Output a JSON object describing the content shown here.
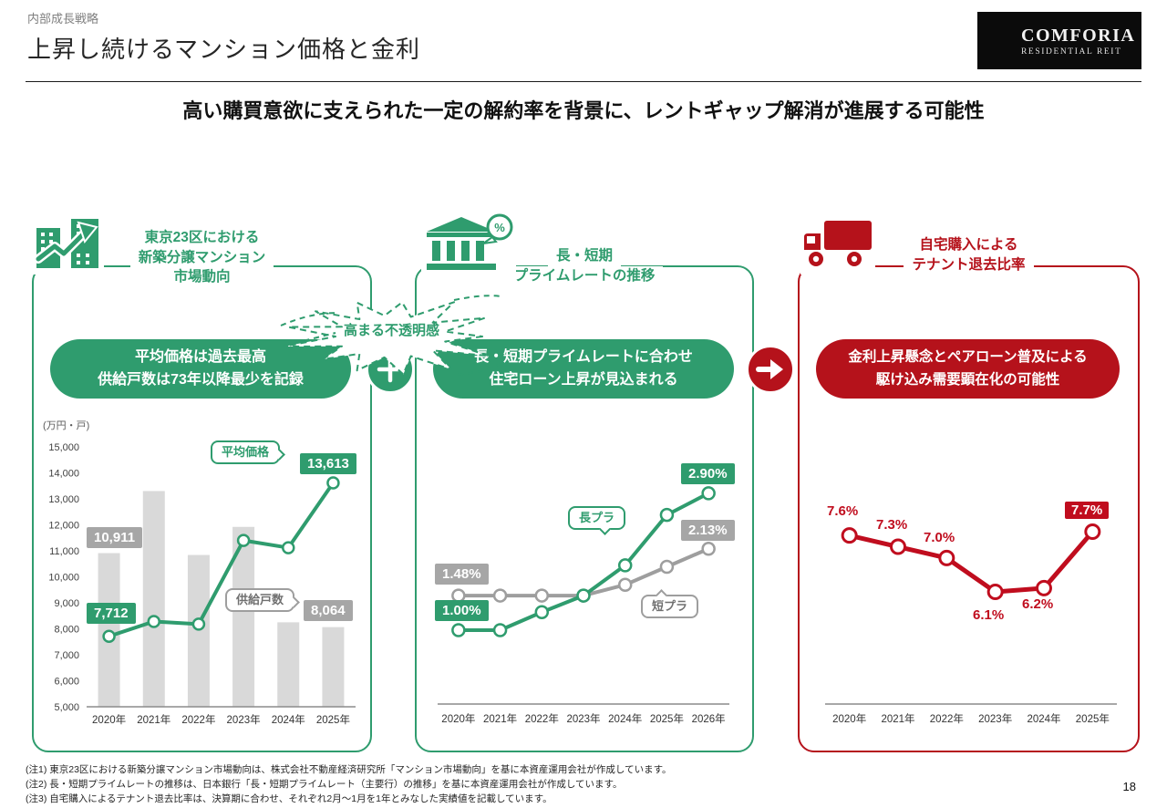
{
  "page": {
    "eyebrow": "内部成長戦略",
    "title": "上昇し続けるマンション価格と金利",
    "subtitle": "高い購買意欲に支えられた一定の解約率を背景に、レントギャップ解消が進展する可能性",
    "page_number": "18"
  },
  "logo": {
    "brand": "COMFORIA",
    "sub": "RESIDENTIAL REIT"
  },
  "colors": {
    "green": "#2f9c6e",
    "red": "#b5121b",
    "chart_red": "#c00d1e",
    "gray_bar": "#d9d9d9",
    "gray_line": "#9e9e9e",
    "gray_label": "#a6a6a6"
  },
  "panels": {
    "left": {
      "title_lines": [
        "東京23区における",
        "新築分譲マンション",
        "市場動向"
      ],
      "badge_lines": [
        "平均価格は過去最高",
        "供給戸数は73年以降最少を記録"
      ],
      "unit": "(万円・戸)",
      "labels": {
        "supply_start": "10,911",
        "price_start": "7,712",
        "price_end": "13,613",
        "supply_end": "8,064",
        "price_bubble": "平均価格",
        "supply_bubble": "供給戸数"
      }
    },
    "middle": {
      "title_lines": [
        "長・短期",
        "プライムレートの推移"
      ],
      "burst": "高まる不透明感",
      "badge_lines": [
        "長・短期プライムレートに合わせ",
        "住宅ローン上昇が見込まれる"
      ],
      "labels": {
        "short_start": "1.48%",
        "long_start": "1.00%",
        "long_end": "2.90%",
        "short_end": "2.13%",
        "long_bubble": "長プラ",
        "short_bubble": "短プラ"
      }
    },
    "right": {
      "title_lines": [
        "自宅購入による",
        "テナント退去比率"
      ],
      "badge_lines": [
        "金利上昇懸念とペアローン普及による",
        "駆け込み需要顕在化の可能性"
      ],
      "labels": [
        "7.6%",
        "7.3%",
        "7.0%",
        "6.1%",
        "6.2%",
        "7.7%"
      ]
    }
  },
  "chart_data": [
    {
      "type": "bar",
      "title": "東京23区における新築分譲マンション市場動向",
      "unit": "(万円・戸)",
      "categories": [
        "2020年",
        "2021年",
        "2022年",
        "2023年",
        "2024年",
        "2025年"
      ],
      "series": [
        {
          "name": "供給戸数",
          "type": "bar",
          "color": "#d9d9d9",
          "values": [
            10911,
            13300,
            10840,
            11920,
            8250,
            8064
          ]
        },
        {
          "name": "平均価格",
          "type": "line",
          "color": "#2f9c6e",
          "values": [
            7712,
            8280,
            8180,
            11400,
            11120,
            13613
          ]
        }
      ],
      "ylim": [
        5000,
        15000
      ],
      "ytick_step": 1000,
      "grid": false,
      "legend": "inline-bubbles"
    },
    {
      "type": "line",
      "title": "長・短期プライムレートの推移",
      "categories": [
        "2020年",
        "2021年",
        "2022年",
        "2023年",
        "2024年",
        "2025年",
        "2026年"
      ],
      "series": [
        {
          "name": "短プラ",
          "type": "line",
          "color": "#9e9e9e",
          "values": [
            1.48,
            1.48,
            1.48,
            1.48,
            1.63,
            1.88,
            2.13
          ]
        },
        {
          "name": "長プラ",
          "type": "line",
          "color": "#2f9c6e",
          "values": [
            1.0,
            1.0,
            1.25,
            1.48,
            1.9,
            2.6,
            2.9
          ]
        }
      ],
      "ylim": [
        0.5,
        3.0
      ],
      "grid": false,
      "yaxis_hidden": true
    },
    {
      "type": "line",
      "title": "自宅購入によるテナント退去比率",
      "categories": [
        "2020年",
        "2021年",
        "2022年",
        "2023年",
        "2024年",
        "2025年"
      ],
      "series": [
        {
          "name": "自宅購入によるテナント退去比率",
          "type": "line",
          "color": "#c00d1e",
          "values": [
            7.6,
            7.3,
            7.0,
            6.1,
            6.2,
            7.7
          ]
        }
      ],
      "ylim": [
        3.0,
        8.5
      ],
      "grid": false,
      "yaxis_hidden": true
    }
  ],
  "footnotes": [
    "(注1) 東京23区における新築分譲マンション市場動向は、株式会社不動産経済研究所「マンション市場動向」を基に本資産運用会社が作成しています。",
    "(注2) 長・短期プライムレートの推移は、日本銀行「長・短期プライムレート（主要行）の推移」を基に本資産運用会社が作成しています。",
    "(注3) 自宅購入によるテナント退去比率は、決算期に合わせ、それぞれ2月～1月を1年とみなした実績値を記載しています。"
  ]
}
